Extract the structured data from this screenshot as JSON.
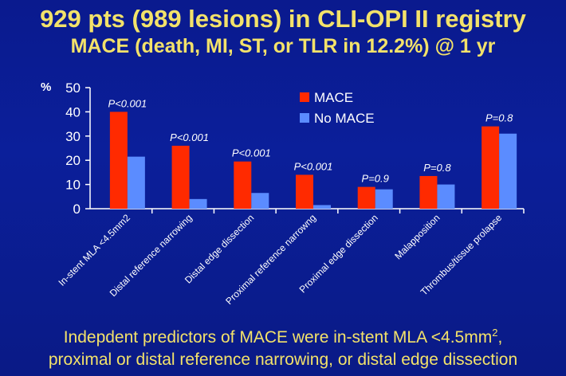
{
  "title_line1": "929 pts (989 lesions) in CLI-OPI II registry",
  "title_line2": "MACE (death, MI, ST, or TLR in 12.2%) @ 1 yr",
  "footer": {
    "line1_main": "Indepdent predictors of MACE were in-stent MLA <4.5mm",
    "line1_sup": "2",
    "line1_end": ",",
    "line2": "proximal or distal reference narrowing, or distal edge dissection"
  },
  "colors": {
    "mace": "#ff2a00",
    "no_mace": "#5b8cff",
    "text": "#ffffff",
    "title": "#f3e26a"
  },
  "chart_data": {
    "type": "bar",
    "ylabel": "%",
    "ylim": [
      0,
      50
    ],
    "yticks": [
      0,
      10,
      20,
      30,
      40,
      50
    ],
    "legend_position": "top-center",
    "categories": [
      "In-stent MLA <4.5mm2",
      "Distal reference narrowing",
      "Distal edge dissection",
      "Proximal reference narrowng",
      "Proximal edge dissection",
      "Malapposition",
      "Thrombus/tissue prolapse"
    ],
    "series": [
      {
        "name": "MACE",
        "values": [
          40,
          26,
          19.5,
          14,
          9,
          13.5,
          34
        ]
      },
      {
        "name": "No MACE",
        "values": [
          21.5,
          4,
          6.5,
          1.5,
          8,
          10,
          31
        ]
      }
    ],
    "annotations": [
      "P<0.001",
      "P<0.001",
      "P<0.001",
      "P<0.001",
      "P=0.9",
      "P=0.8",
      "P=0.8"
    ]
  }
}
